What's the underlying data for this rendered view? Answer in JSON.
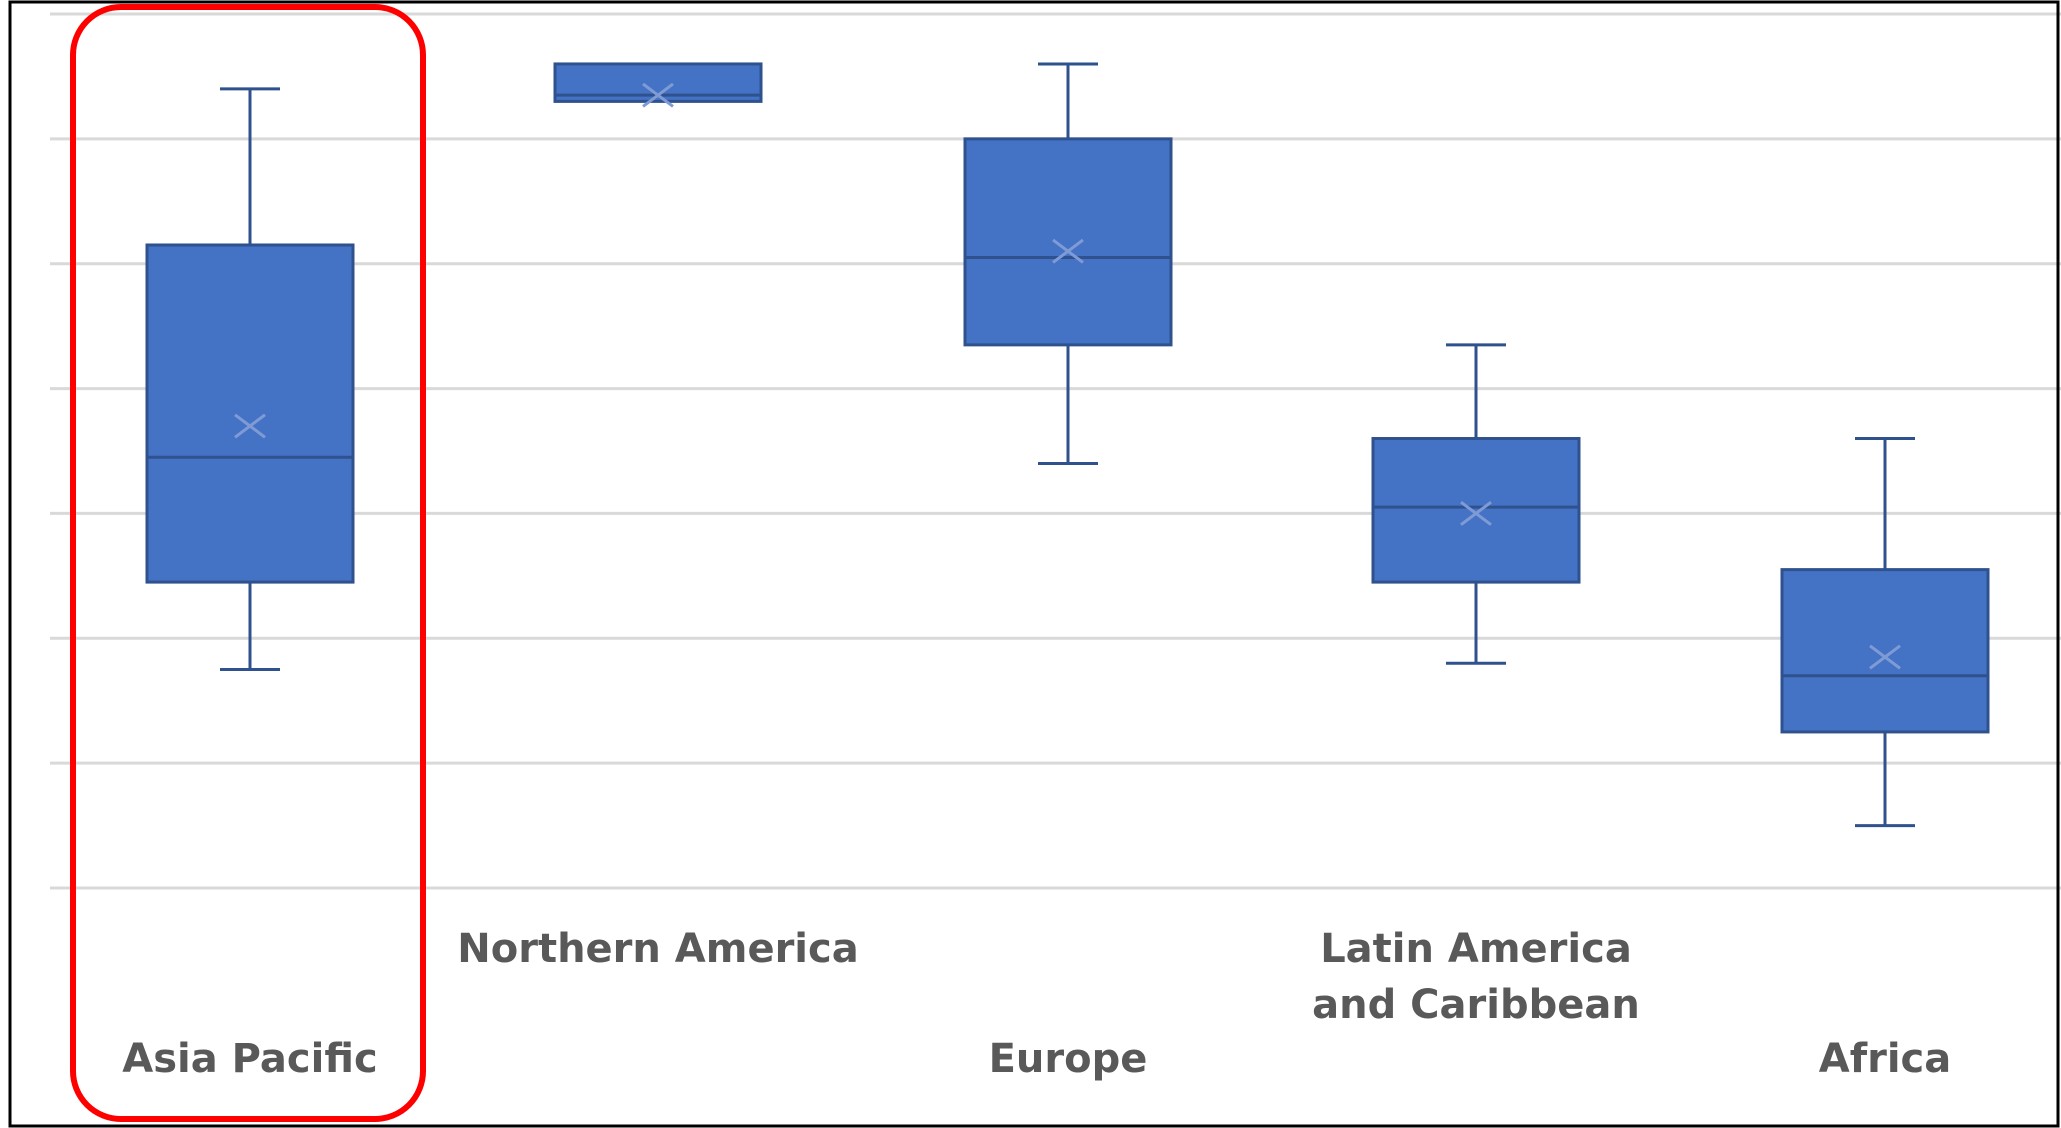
{
  "chart_data": {
    "type": "box",
    "title": "",
    "xlabel": "",
    "ylabel": "",
    "ylim": [
      0,
      7
    ],
    "grid": true,
    "legend": "none",
    "categories": [
      [
        "Asia Pacific"
      ],
      [
        "Northern America"
      ],
      [
        "Europe"
      ],
      [
        "Latin America",
        "and Caribbean"
      ],
      [
        "Africa"
      ]
    ],
    "boxes": [
      {
        "min": 1.75,
        "q1": 2.45,
        "median": 3.45,
        "q3": 5.15,
        "max": 6.4,
        "mean": 3.7
      },
      {
        "min": 6.3,
        "q1": 6.3,
        "median": 6.35,
        "q3": 6.6,
        "max": 6.6,
        "mean": 6.35
      },
      {
        "min": 3.4,
        "q1": 4.35,
        "median": 5.05,
        "q3": 6.0,
        "max": 6.6,
        "mean": 5.1
      },
      {
        "min": 1.8,
        "q1": 2.45,
        "median": 3.05,
        "q3": 3.6,
        "max": 4.35,
        "mean": 3.0
      },
      {
        "min": 0.5,
        "q1": 1.25,
        "median": 1.7,
        "q3": 2.55,
        "max": 3.6,
        "mean": 1.85
      }
    ],
    "highlighted_category": "Asia Pacific",
    "colors": {
      "box_fill": "#4472C4",
      "box_stroke": "#2F528F",
      "whisker": "#2F528F",
      "mean_marker": "#7F9BD6",
      "gridline": "#D9D9D9",
      "highlight": "#FF0000",
      "label": "#595959",
      "frame": "#000000"
    }
  }
}
